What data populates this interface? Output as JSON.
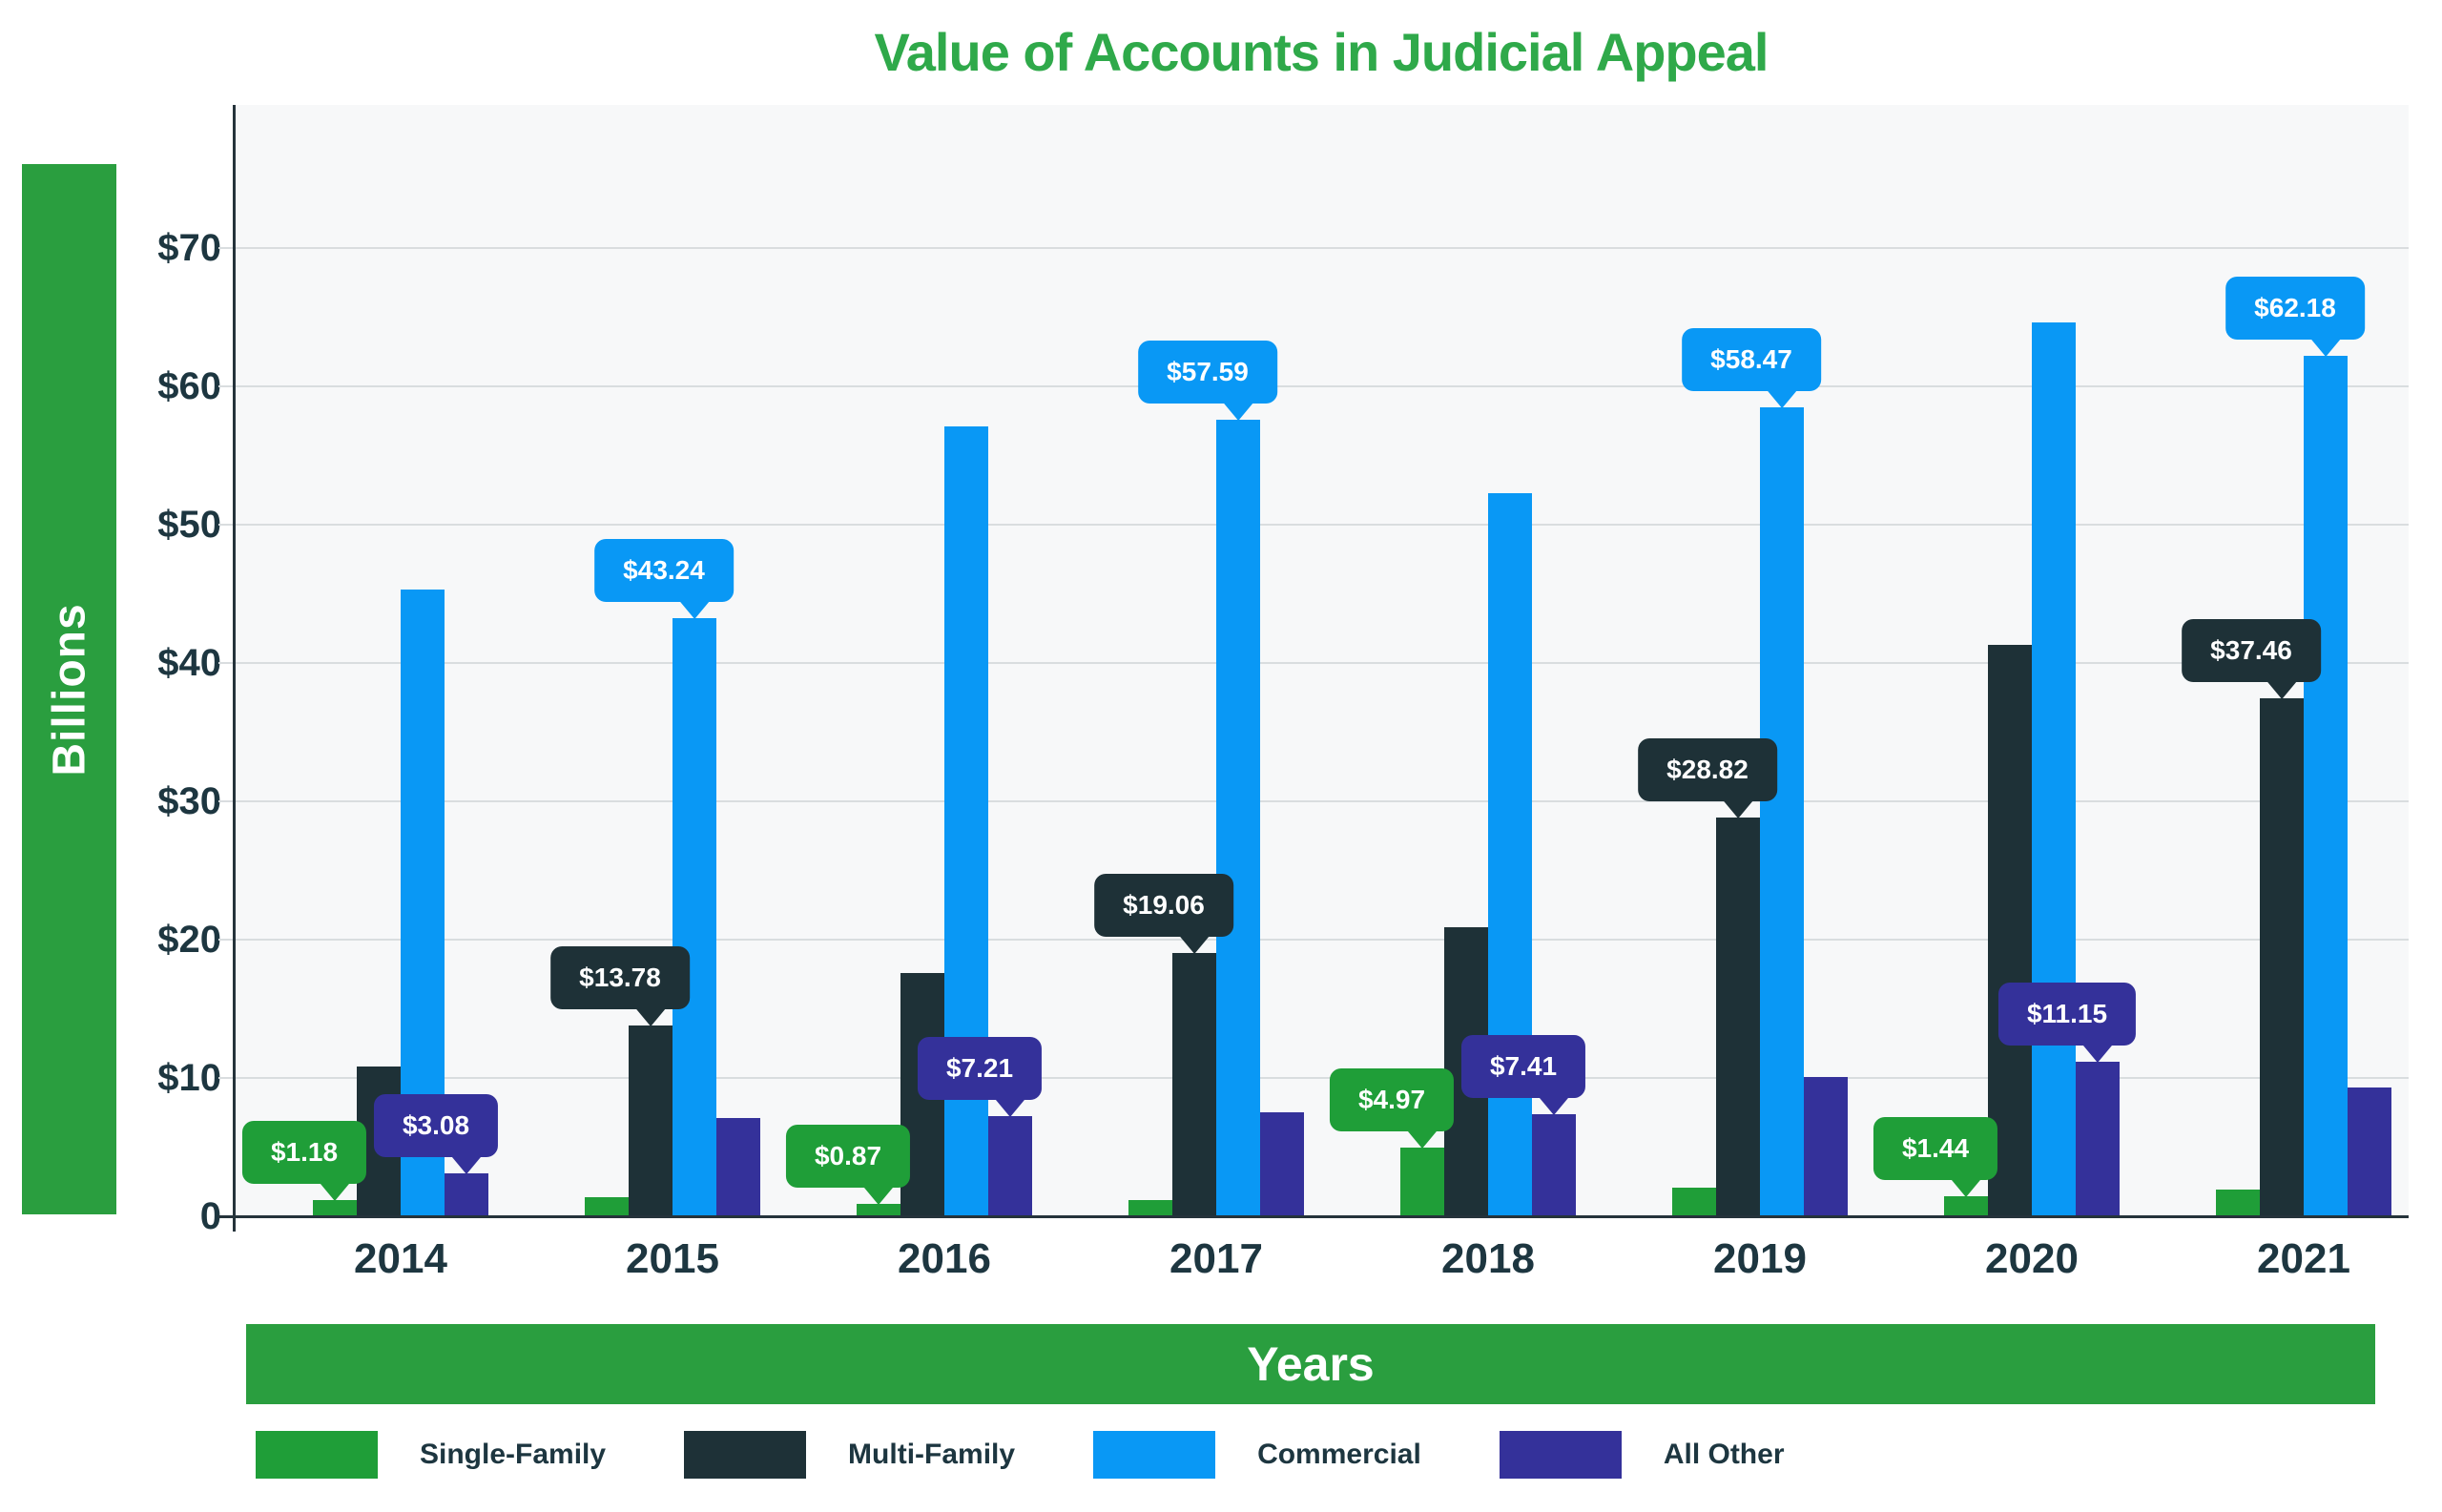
{
  "title": "Value of Accounts in Judicial Appeal",
  "y_axis": {
    "label": "Billions"
  },
  "x_axis": {
    "label": "Years"
  },
  "colors": {
    "title": "#2fa94a",
    "banner": "#2a9e3f",
    "banner_text": "#ffffff",
    "plot_background": "#f7f8f9",
    "gridline": "#d9dddf",
    "axis": "#25333b",
    "tick_text": "#1d3640",
    "callout_text": "#ffffff"
  },
  "chart_data": {
    "type": "bar",
    "title": "Value of Accounts in Judicial Appeal",
    "xlabel": "Years",
    "ylabel": "Billions",
    "ylim": [
      0,
      80
    ],
    "grid": "horizontal",
    "legend_position": "bottom",
    "categories": [
      "2014",
      "2015",
      "2016",
      "2017",
      "2018",
      "2019",
      "2020",
      "2021"
    ],
    "y_ticks": [
      {
        "label": "$70",
        "value": 70
      },
      {
        "label": "$60",
        "value": 60
      },
      {
        "label": "$50",
        "value": 50
      },
      {
        "label": "$40",
        "value": 40
      },
      {
        "label": "$30",
        "value": 30
      },
      {
        "label": "$20",
        "value": 20
      },
      {
        "label": "$10",
        "value": 10
      },
      {
        "label": "0",
        "value": 0
      }
    ],
    "series": [
      {
        "name": "Single-Family",
        "color": "#1f9e38",
        "values": [
          1.18,
          1.4,
          0.87,
          1.2,
          4.97,
          2.1,
          1.44,
          1.9
        ],
        "data_labels": [
          "$1.18",
          null,
          "$0.87",
          null,
          "$4.97",
          null,
          "$1.44",
          null
        ]
      },
      {
        "name": "Multi-Family",
        "color": "#1e3137",
        "values": [
          10.8,
          13.78,
          17.6,
          19.06,
          20.9,
          28.82,
          41.3,
          37.46
        ],
        "data_labels": [
          null,
          "$13.78",
          null,
          "$19.06",
          null,
          "$28.82",
          null,
          "$37.46"
        ]
      },
      {
        "name": "Commercial",
        "color": "#0998f5",
        "values": [
          45.3,
          43.24,
          57.1,
          57.59,
          52.3,
          58.47,
          64.6,
          62.18
        ],
        "data_labels": [
          null,
          "$43.24",
          null,
          "$57.59",
          null,
          "$58.47",
          null,
          "$62.18"
        ]
      },
      {
        "name": "All Other",
        "color": "#34319a",
        "values": [
          3.08,
          7.1,
          7.21,
          7.5,
          7.41,
          10.1,
          11.15,
          9.3
        ],
        "data_labels": [
          "$3.08",
          null,
          "$7.21",
          null,
          "$7.41",
          null,
          "$11.15",
          null
        ]
      }
    ]
  }
}
